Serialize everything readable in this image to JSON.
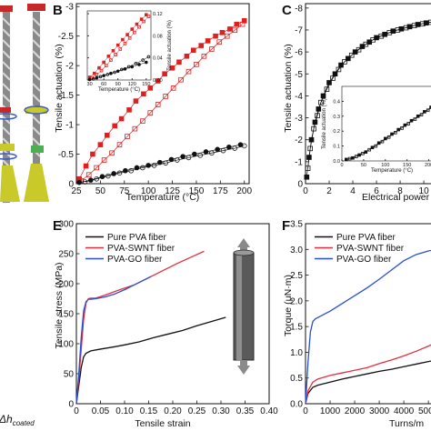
{
  "panel_labels": {
    "B": "B",
    "C": "C",
    "E": "E",
    "F": "F"
  },
  "left_strip": {
    "label_main": "Δh",
    "label_sub": "coated"
  },
  "chart_data": [
    {
      "panel": "B",
      "type": "scatter",
      "xlabel": "Temperature (°C)",
      "ylabel": "Tensile actuation (%)",
      "xlim": [
        25,
        205
      ],
      "ylim": [
        0,
        -3.05
      ],
      "xticks": [
        25,
        50,
        75,
        100,
        125,
        150,
        175,
        200
      ],
      "yticks": [
        0,
        -0.5,
        -1,
        -1.5,
        -2,
        -2.5,
        -3
      ],
      "ytick_labels": [
        "0",
        "-0.5",
        "-1",
        "-1.5",
        "-2",
        "-2.5",
        "-3"
      ],
      "series": [
        {
          "color": "#e02020",
          "marker": "square-filled",
          "x": [
            28,
            35,
            42,
            50,
            57,
            65,
            72,
            80,
            87,
            95,
            102,
            110,
            117,
            125,
            132,
            140,
            147,
            155,
            162,
            170,
            177,
            185,
            192,
            200
          ],
          "y": [
            -0.08,
            -0.3,
            -0.5,
            -0.66,
            -0.82,
            -0.98,
            -1.1,
            -1.25,
            -1.4,
            -1.52,
            -1.62,
            -1.74,
            -1.86,
            -1.96,
            -2.06,
            -2.16,
            -2.26,
            -2.34,
            -2.42,
            -2.5,
            -2.56,
            -2.62,
            -2.7,
            -2.76
          ]
        },
        {
          "color": "#e02020",
          "marker": "square-open",
          "x": [
            30,
            38,
            46,
            54,
            62,
            70,
            78,
            86,
            94,
            102,
            110,
            118,
            126,
            134,
            142,
            150,
            158,
            166,
            174,
            182,
            190,
            198
          ],
          "y": [
            -0.05,
            -0.15,
            -0.27,
            -0.4,
            -0.52,
            -0.66,
            -0.8,
            -0.93,
            -1.06,
            -1.2,
            -1.34,
            -1.48,
            -1.62,
            -1.76,
            -1.9,
            -2.02,
            -2.16,
            -2.28,
            -2.4,
            -2.5,
            -2.6,
            -2.7
          ]
        },
        {
          "color": "#111111",
          "marker": "circle-filled",
          "x": [
            28,
            40,
            52,
            64,
            76,
            88,
            100,
            112,
            124,
            136,
            148,
            160,
            172,
            184,
            196
          ],
          "y": [
            -0.02,
            -0.06,
            -0.12,
            -0.17,
            -0.22,
            -0.27,
            -0.31,
            -0.36,
            -0.41,
            -0.46,
            -0.5,
            -0.54,
            -0.58,
            -0.62,
            -0.66
          ]
        },
        {
          "color": "#111111",
          "marker": "circle-open",
          "x": [
            34,
            46,
            58,
            70,
            82,
            94,
            106,
            118,
            130,
            142,
            154,
            166,
            178,
            190,
            200
          ],
          "y": [
            -0.03,
            -0.08,
            -0.13,
            -0.18,
            -0.22,
            -0.27,
            -0.31,
            -0.35,
            -0.4,
            -0.44,
            -0.48,
            -0.52,
            -0.56,
            -0.6,
            -0.64
          ]
        }
      ],
      "inset": {
        "xlabel": "Temperature (°C)",
        "ylabel": "Tensile actuation (%)",
        "xlim": [
          25,
          160
        ],
        "ylim": [
          0,
          -0.125
        ],
        "xticks": [
          30,
          60,
          90,
          120,
          150
        ],
        "yticks": [
          0,
          -0.04,
          -0.08,
          -0.12
        ],
        "ytick_labels": [
          "0.00",
          "0.04",
          "0.08",
          "0.12"
        ],
        "series": [
          {
            "color": "#e02020",
            "marker": "square-filled",
            "x": [
              30,
              40,
              50,
              60,
              70,
              80,
              90,
              100,
              110,
              120,
              130,
              140,
              150
            ],
            "y": [
              -0.005,
              -0.012,
              -0.022,
              -0.032,
              -0.043,
              -0.053,
              -0.063,
              -0.073,
              -0.082,
              -0.092,
              -0.101,
              -0.11,
              -0.118
            ]
          },
          {
            "color": "#e02020",
            "marker": "square-open",
            "x": [
              35,
              45,
              55,
              65,
              75,
              85,
              95,
              105,
              115,
              125,
              135,
              145,
              155
            ],
            "y": [
              -0.004,
              -0.01,
              -0.017,
              -0.026,
              -0.036,
              -0.046,
              -0.056,
              -0.066,
              -0.076,
              -0.086,
              -0.096,
              -0.106,
              -0.115
            ]
          },
          {
            "color": "#111111",
            "marker": "circle-filled",
            "x": [
              30,
              45,
              60,
              75,
              90,
              105,
              120,
              135,
              150
            ],
            "y": [
              -0.001,
              -0.004,
              -0.008,
              -0.012,
              -0.016,
              -0.02,
              -0.024,
              -0.028,
              -0.032
            ]
          },
          {
            "color": "#111111",
            "marker": "circle-open",
            "x": [
              38,
              53,
              68,
              83,
              98,
              113,
              128,
              143,
              155
            ],
            "y": [
              -0.002,
              -0.006,
              -0.01,
              -0.014,
              -0.019,
              -0.024,
              -0.03,
              -0.036,
              -0.042
            ]
          }
        ]
      }
    },
    {
      "panel": "C",
      "type": "scatter",
      "xlabel": "Electrical power",
      "ylabel": "Tensile actuation (%)",
      "xlim": [
        0,
        12.3
      ],
      "ylim": [
        0,
        -8.2
      ],
      "xticks": [
        0,
        2,
        4,
        6,
        8,
        10,
        12
      ],
      "yticks": [
        0,
        -1,
        -2,
        -3,
        -4,
        -5,
        -6,
        -7,
        -8
      ],
      "ytick_labels": [
        "0",
        "-1",
        "-2",
        "-3",
        "-4",
        "-5",
        "-6",
        "-7",
        "-8"
      ],
      "series": [
        {
          "color": "#111111",
          "marker": "square-filled",
          "x": [
            0.1,
            0.3,
            0.5,
            0.8,
            1.1,
            1.5,
            2.0,
            2.5,
            3.0,
            3.6,
            4.2,
            4.8,
            5.4,
            6.0,
            6.7,
            7.4,
            8.1,
            8.8,
            9.5,
            10.2,
            11.0,
            11.8
          ],
          "y": [
            -0.3,
            -1.2,
            -2.0,
            -2.8,
            -3.4,
            -4.0,
            -4.6,
            -5.0,
            -5.4,
            -5.7,
            -6.0,
            -6.25,
            -6.45,
            -6.65,
            -6.8,
            -6.95,
            -7.05,
            -7.15,
            -7.25,
            -7.32,
            -7.4,
            -7.45
          ]
        },
        {
          "color": "#111111",
          "marker": "square-open",
          "x": [
            0.2,
            0.4,
            0.7,
            1.0,
            1.3,
            1.8,
            2.3,
            2.8,
            3.3,
            3.9,
            4.5,
            5.1,
            5.7,
            6.4,
            7.1,
            7.8,
            8.5,
            9.2,
            9.9,
            10.6,
            11.4
          ],
          "y": [
            -0.7,
            -1.6,
            -2.5,
            -3.1,
            -3.7,
            -4.3,
            -4.8,
            -5.2,
            -5.55,
            -5.85,
            -6.1,
            -6.35,
            -6.55,
            -6.72,
            -6.88,
            -7.0,
            -7.1,
            -7.2,
            -7.28,
            -7.35,
            -7.42
          ]
        }
      ],
      "inset": {
        "xlabel": "Temperature (°C)",
        "ylabel": "Tensile actuation (%)",
        "xlim": [
          0,
          230
        ],
        "ylim": [
          0,
          -0.5
        ],
        "xticks": [
          0,
          50,
          100,
          150,
          200
        ],
        "yticks": [
          0,
          -0.1,
          -0.2,
          -0.3,
          -0.4
        ],
        "ytick_labels": [
          "0.0",
          "0.1",
          "0.2",
          "0.3",
          "0.4"
        ],
        "series": [
          {
            "color": "#111111",
            "marker": "square-filled",
            "x": [
              10,
              25,
              40,
              55,
              70,
              85,
              100,
              115,
              130,
              145,
              160,
              175,
              190,
              205,
              220
            ],
            "y": [
              -0.01,
              -0.02,
              -0.04,
              -0.06,
              -0.09,
              -0.12,
              -0.15,
              -0.18,
              -0.21,
              -0.24,
              -0.27,
              -0.3,
              -0.33,
              -0.36,
              -0.39
            ]
          },
          {
            "color": "#111111",
            "marker": "square-open",
            "x": [
              18,
              33,
              48,
              63,
              78,
              93,
              108,
              123,
              138,
              153,
              168,
              183,
              198,
              213,
              226
            ],
            "y": [
              -0.015,
              -0.03,
              -0.05,
              -0.075,
              -0.1,
              -0.13,
              -0.16,
              -0.19,
              -0.22,
              -0.25,
              -0.28,
              -0.31,
              -0.34,
              -0.37,
              -0.4
            ]
          }
        ]
      }
    },
    {
      "panel": "E",
      "type": "line",
      "xlabel": "Tensile strain",
      "ylabel": "Tensile stress (MPa)",
      "xlim": [
        0,
        0.4
      ],
      "ylim": [
        0,
        300
      ],
      "xticks": [
        0,
        0.05,
        0.1,
        0.15,
        0.2,
        0.25,
        0.3,
        0.35,
        0.4
      ],
      "xtick_labels": [
        "0",
        "0.05",
        "0.10",
        "0.15",
        "0.20",
        "0.25",
        "0.30",
        "0.35",
        "0.40"
      ],
      "yticks": [
        0,
        50,
        100,
        150,
        200,
        250,
        300
      ],
      "legend": "top-left",
      "series": [
        {
          "name": "Pure PVA fiber",
          "color": "#111111",
          "x": [
            0,
            0.005,
            0.01,
            0.015,
            0.02,
            0.03,
            0.05,
            0.08,
            0.1,
            0.13,
            0.16,
            0.19,
            0.22,
            0.25,
            0.28,
            0.31
          ],
          "y": [
            0,
            30,
            60,
            78,
            84,
            88,
            91,
            95,
            98,
            103,
            110,
            116,
            122,
            130,
            137,
            144
          ]
        },
        {
          "name": "PVA-SWNT fiber",
          "color": "#e03040",
          "x": [
            0,
            0.005,
            0.01,
            0.015,
            0.02,
            0.025,
            0.03,
            0.04,
            0.06,
            0.09,
            0.12,
            0.15,
            0.18,
            0.21,
            0.24,
            0.265
          ],
          "y": [
            0,
            40,
            90,
            140,
            168,
            175,
            176,
            176,
            181,
            190,
            198,
            210,
            222,
            234,
            245,
            254
          ]
        },
        {
          "name": "PVA-GO fiber",
          "color": "#2a4fd0",
          "x": [
            0,
            0.005,
            0.01,
            0.015,
            0.02,
            0.025,
            0.03,
            0.04,
            0.06,
            0.08,
            0.1,
            0.12,
            0.14,
            0.155
          ],
          "y": [
            0,
            50,
            110,
            155,
            170,
            174,
            174,
            175,
            178,
            183,
            190,
            198,
            206,
            212
          ]
        }
      ]
    },
    {
      "panel": "F",
      "type": "line",
      "xlabel": "Turns/m",
      "ylabel": "Torque (μN·m)",
      "xlim": [
        0,
        5550
      ],
      "ylim": [
        0,
        3.5
      ],
      "xticks": [
        0,
        1000,
        2000,
        3000,
        4000,
        5000
      ],
      "yticks": [
        0,
        0.5,
        1,
        1.5,
        2,
        2.5,
        3,
        3.5
      ],
      "ytick_labels": [
        "0.0",
        "0.5",
        "1.0",
        "1.5",
        "2.0",
        "2.5",
        "3.0",
        "3.5"
      ],
      "legend": "top-left",
      "series": [
        {
          "name": "Pure PVA fiber",
          "color": "#111111",
          "x": [
            0,
            100,
            300,
            500,
            1000,
            1500,
            2000,
            2500,
            3000,
            3500,
            4000,
            4500,
            5000,
            5500
          ],
          "y": [
            0,
            0.2,
            0.32,
            0.36,
            0.42,
            0.48,
            0.53,
            0.58,
            0.63,
            0.67,
            0.72,
            0.77,
            0.82,
            0.87
          ]
        },
        {
          "name": "PVA-SWNT fiber",
          "color": "#e03040",
          "x": [
            0,
            100,
            300,
            500,
            1000,
            1500,
            2000,
            2500,
            3000,
            3500,
            4000,
            4500,
            5000,
            5500
          ],
          "y": [
            0,
            0.25,
            0.42,
            0.48,
            0.55,
            0.6,
            0.65,
            0.7,
            0.78,
            0.85,
            0.93,
            1.02,
            1.12,
            1.25
          ]
        },
        {
          "name": "PVA-GO fiber",
          "color": "#2a4fd0",
          "x": [
            0,
            100,
            200,
            300,
            400,
            600,
            1000,
            1500,
            2000,
            2500,
            3000,
            3500,
            4000,
            4500,
            5000,
            5500
          ],
          "y": [
            0,
            0.8,
            1.4,
            1.6,
            1.65,
            1.7,
            1.8,
            1.95,
            2.1,
            2.25,
            2.42,
            2.6,
            2.78,
            2.9,
            2.97,
            3.02
          ]
        }
      ]
    }
  ]
}
